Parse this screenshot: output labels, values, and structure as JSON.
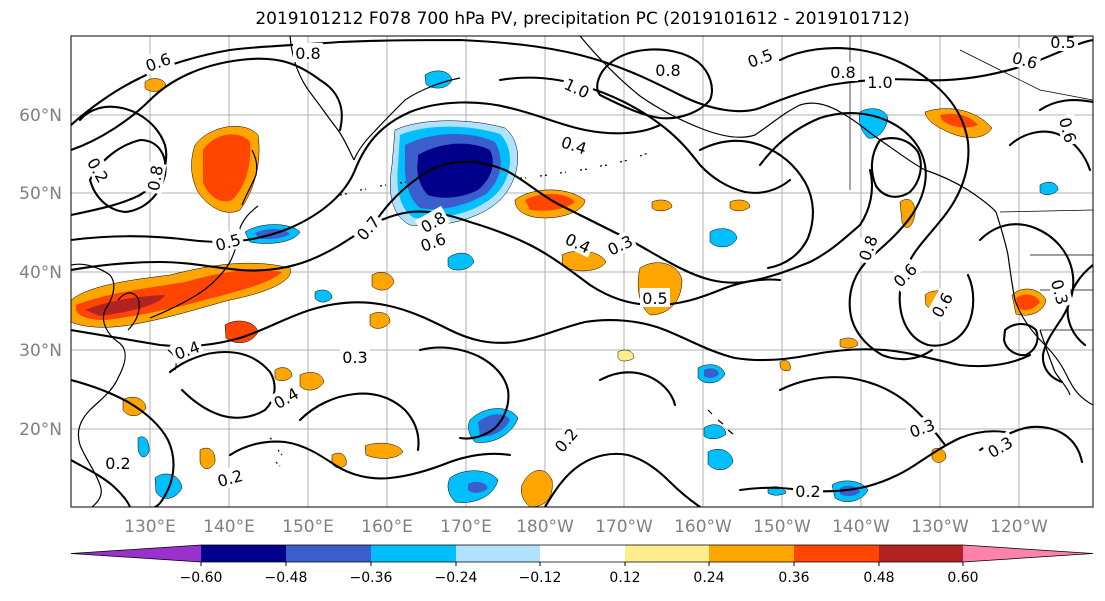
{
  "title": "2019101212 F078 700 hPa PV, precipitation PC (2019101612 - 2019101712)",
  "map": {
    "lat_labels": [
      "60°N",
      "50°N",
      "40°N",
      "30°N",
      "20°N"
    ],
    "lon_labels": [
      "130°E",
      "140°E",
      "150°E",
      "160°E",
      "170°E",
      "180°W",
      "170°W",
      "160°W",
      "150°W",
      "140°W",
      "130°W",
      "120°W"
    ]
  },
  "contour_labels": [
    "0.6",
    "0.8",
    "1.0",
    "0.8",
    "0.4",
    "0.5",
    "0.8",
    "1.0",
    "0.6",
    "0.5",
    "0.8",
    "0.5",
    "0.7",
    "0.8",
    "0.6",
    "0.4",
    "0.3",
    "0.5",
    "0.8",
    "0.6",
    "0.6",
    "0.4",
    "0.3",
    "0.4",
    "0.3",
    "0.2",
    "0.3",
    "0.2",
    "0.2",
    "0.2",
    "0.2",
    "0.6",
    "0.3"
  ],
  "colorbar": {
    "tick_labels": [
      "−0.60",
      "−0.48",
      "−0.36",
      "−0.24",
      "−0.12",
      "0.12",
      "0.24",
      "0.36",
      "0.48",
      "0.60"
    ],
    "colors": [
      "#9932cc",
      "#00008b",
      "#3a5fcd",
      "#00bfff",
      "#b0e2ff",
      "#ffffff",
      "#ffec8b",
      "#ffa500",
      "#ff4500",
      "#b22222",
      "#ff82ab"
    ]
  }
}
